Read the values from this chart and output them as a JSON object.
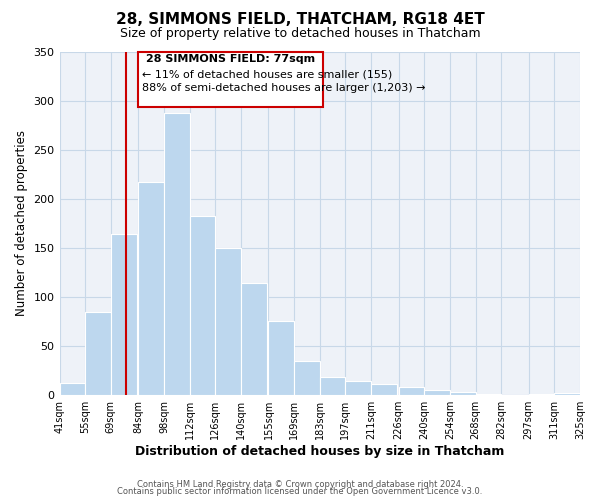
{
  "title": "28, SIMMONS FIELD, THATCHAM, RG18 4ET",
  "subtitle": "Size of property relative to detached houses in Thatcham",
  "xlabel": "Distribution of detached houses by size in Thatcham",
  "ylabel": "Number of detached properties",
  "bar_left_edges": [
    41,
    55,
    69,
    84,
    98,
    112,
    126,
    140,
    155,
    169,
    183,
    197,
    211,
    226,
    240,
    254,
    268,
    282,
    297,
    311
  ],
  "bar_heights": [
    12,
    84,
    164,
    217,
    287,
    182,
    150,
    114,
    75,
    34,
    18,
    14,
    11,
    8,
    5,
    3,
    1,
    0,
    1,
    2
  ],
  "bar_widths": [
    14,
    14,
    14,
    14,
    14,
    14,
    14,
    14,
    14,
    14,
    14,
    14,
    14,
    14,
    14,
    14,
    14,
    14,
    14,
    14
  ],
  "bar_color": "#bdd7ee",
  "bar_edge_color": "#ffffff",
  "x_tick_labels": [
    "41sqm",
    "55sqm",
    "69sqm",
    "84sqm",
    "98sqm",
    "112sqm",
    "126sqm",
    "140sqm",
    "155sqm",
    "169sqm",
    "183sqm",
    "197sqm",
    "211sqm",
    "226sqm",
    "240sqm",
    "254sqm",
    "268sqm",
    "282sqm",
    "297sqm",
    "311sqm",
    "325sqm"
  ],
  "x_tick_positions": [
    41,
    55,
    69,
    84,
    98,
    112,
    126,
    140,
    155,
    169,
    183,
    197,
    211,
    226,
    240,
    254,
    268,
    282,
    297,
    311,
    325
  ],
  "ylim": [
    0,
    350
  ],
  "yticks": [
    0,
    50,
    100,
    150,
    200,
    250,
    300,
    350
  ],
  "xlim_left": 41,
  "xlim_right": 325,
  "vline_x": 77,
  "vline_color": "#cc0000",
  "annotation_title": "28 SIMMONS FIELD: 77sqm",
  "annotation_line1": "← 11% of detached houses are smaller (155)",
  "annotation_line2": "88% of semi-detached houses are larger (1,203) →",
  "annotation_box_facecolor": "#ffffff",
  "annotation_box_edgecolor": "#cc0000",
  "grid_color": "#c8d8e8",
  "background_color": "#ffffff",
  "plot_bg_color": "#eef2f8",
  "footer_line1": "Contains HM Land Registry data © Crown copyright and database right 2024.",
  "footer_line2": "Contains public sector information licensed under the Open Government Licence v3.0."
}
